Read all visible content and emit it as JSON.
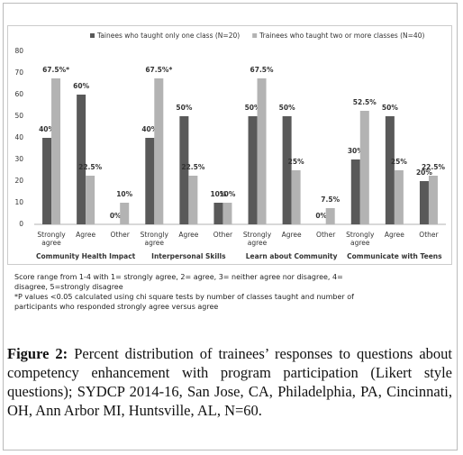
{
  "chart_data": {
    "type": "bar",
    "categories": [
      "Strongly agree",
      "Agree",
      "Other",
      "Strongly agree",
      "Agree",
      "Other",
      "Strongly agree",
      "Agree",
      "Other",
      "Strongly agree",
      "Agree",
      "Other"
    ],
    "groups": [
      "Community Health Impact",
      "Interpersonal Skills",
      "Learn about Community",
      "Communicate with Teens"
    ],
    "series": [
      {
        "name": "Tainees who taught only one class (N=20)",
        "color": "#595959",
        "values": [
          40,
          60,
          0,
          40,
          50,
          10,
          50,
          50,
          0,
          30,
          50,
          20
        ],
        "value_labels": [
          "40%",
          "60%",
          "0%",
          "40%",
          "50%",
          "10%",
          "50%",
          "50%",
          "0%",
          "30%",
          "50%",
          "20%"
        ]
      },
      {
        "name": "Trainees who taught two or more classes (N=40)",
        "color": "#b3b3b3",
        "values": [
          67.5,
          22.5,
          10,
          67.5,
          22.5,
          10,
          67.5,
          25,
          7.5,
          52.5,
          25,
          22.5
        ],
        "value_labels": [
          "67.5%*",
          "22.5%",
          "10%",
          "67.5%*",
          "22.5%",
          "10%",
          "67.5%",
          "25%",
          "7.5%",
          "52.5%",
          "25%",
          "22.5%"
        ]
      }
    ],
    "ylim": [
      0,
      80
    ],
    "yticks": [
      0,
      10,
      20,
      30,
      40,
      50,
      60,
      70,
      80
    ],
    "legend": "top"
  },
  "notes": [
    "Score range from 1-4 with 1= strongly agree, 2= agree, 3= neither agree nor disagree, 4= disagree, 5=strongly disagree",
    "*P values <0.05 calculated using chi square tests by number of classes taught and number of participants who responded strongly agree versus agree"
  ],
  "caption": {
    "label": "Figure 2:",
    "text": "Percent distribution of trainees’ responses to questions about competency enhancement with program participation (Likert style questions); SYDCP 2014-16, San Jose, CA, Philadelphia, PA, Cincinnati, OH, Ann Arbor MI, Huntsville, AL, N=60."
  }
}
